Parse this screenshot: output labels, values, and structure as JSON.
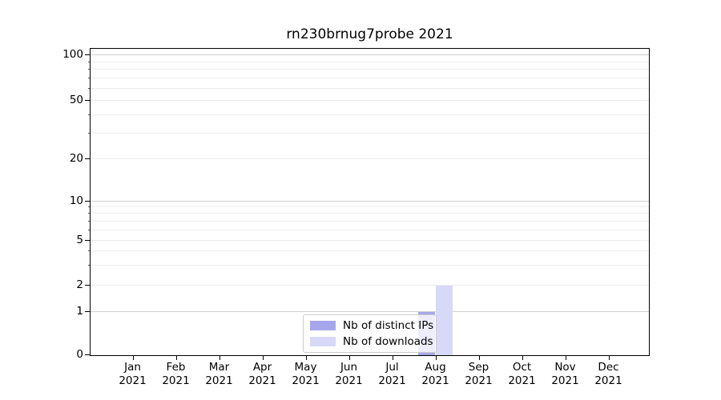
{
  "chart_data": {
    "type": "bar",
    "title": "rn230brnug7probe 2021",
    "categories": [
      "Jan 2021",
      "Feb 2021",
      "Mar 2021",
      "Apr 2021",
      "May 2021",
      "Jun 2021",
      "Jul 2021",
      "Aug 2021",
      "Sep 2021",
      "Oct 2021",
      "Nov 2021",
      "Dec 2021"
    ],
    "series": [
      {
        "name": "Nb of distinct IPs",
        "color": "#a6a6ed",
        "values": [
          0,
          0,
          0,
          0,
          0,
          0,
          0,
          1,
          0,
          0,
          0,
          0
        ]
      },
      {
        "name": "Nb of downloads",
        "color": "#d8d8f8",
        "values": [
          0,
          0,
          0,
          0,
          0,
          0,
          0,
          2,
          0,
          0,
          0,
          0
        ]
      }
    ],
    "yscale": "symlog",
    "ylim": [
      0,
      110
    ],
    "ytick_labels": [
      "0",
      "1",
      "2",
      "5",
      "10",
      "20",
      "50",
      "100"
    ],
    "ytick_values": [
      0,
      1,
      2,
      5,
      10,
      20,
      50,
      100
    ],
    "grid": "horizontal major and minor",
    "legend_position": "lower center"
  },
  "colors": {
    "major_grid": "#d0d0d0",
    "minor_grid": "#ececec",
    "spine": "#000000",
    "legend_border": "#cccccc",
    "background": "#ffffff"
  }
}
